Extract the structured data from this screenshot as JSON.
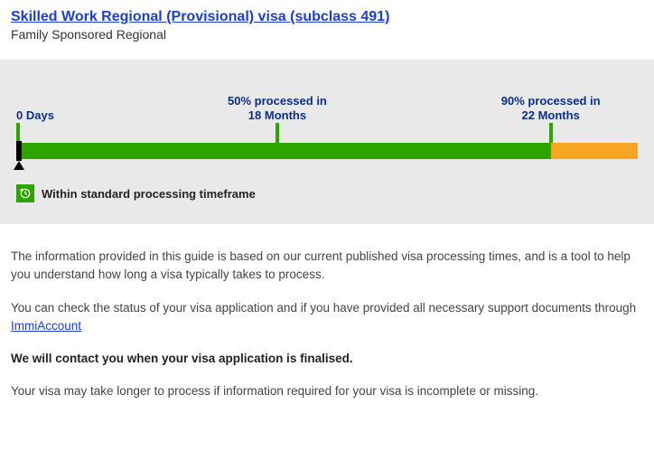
{
  "header": {
    "title": "Skilled Work Regional (Provisional) visa (subclass 491)",
    "subtitle": "Family Sponsored Regional"
  },
  "timeline": {
    "start_label": "0 Days",
    "mid": {
      "line1": "50% processed in",
      "line2": "18 Months",
      "position_pct": 42
    },
    "end": {
      "line1": "90% processed in",
      "line2": "22 Months",
      "position_pct": 86
    },
    "green_pct": 86,
    "bar_colors": {
      "green": "#2da400",
      "orange": "#f6a623"
    },
    "status": "Within standard processing timeframe"
  },
  "content": {
    "para1": "The information provided in this guide is based on our current published visa processing times, and is a tool to help you understand how long a visa typically takes to process.",
    "para2_pre": "You can check the status of your visa application and if you have provided all necessary support documents through ",
    "para2_link": "ImmiAccount",
    "para3": "We will contact you when your visa application is finalised.",
    "para4": "Your visa may take longer to process if information required for your visa is incomplete or missing."
  }
}
